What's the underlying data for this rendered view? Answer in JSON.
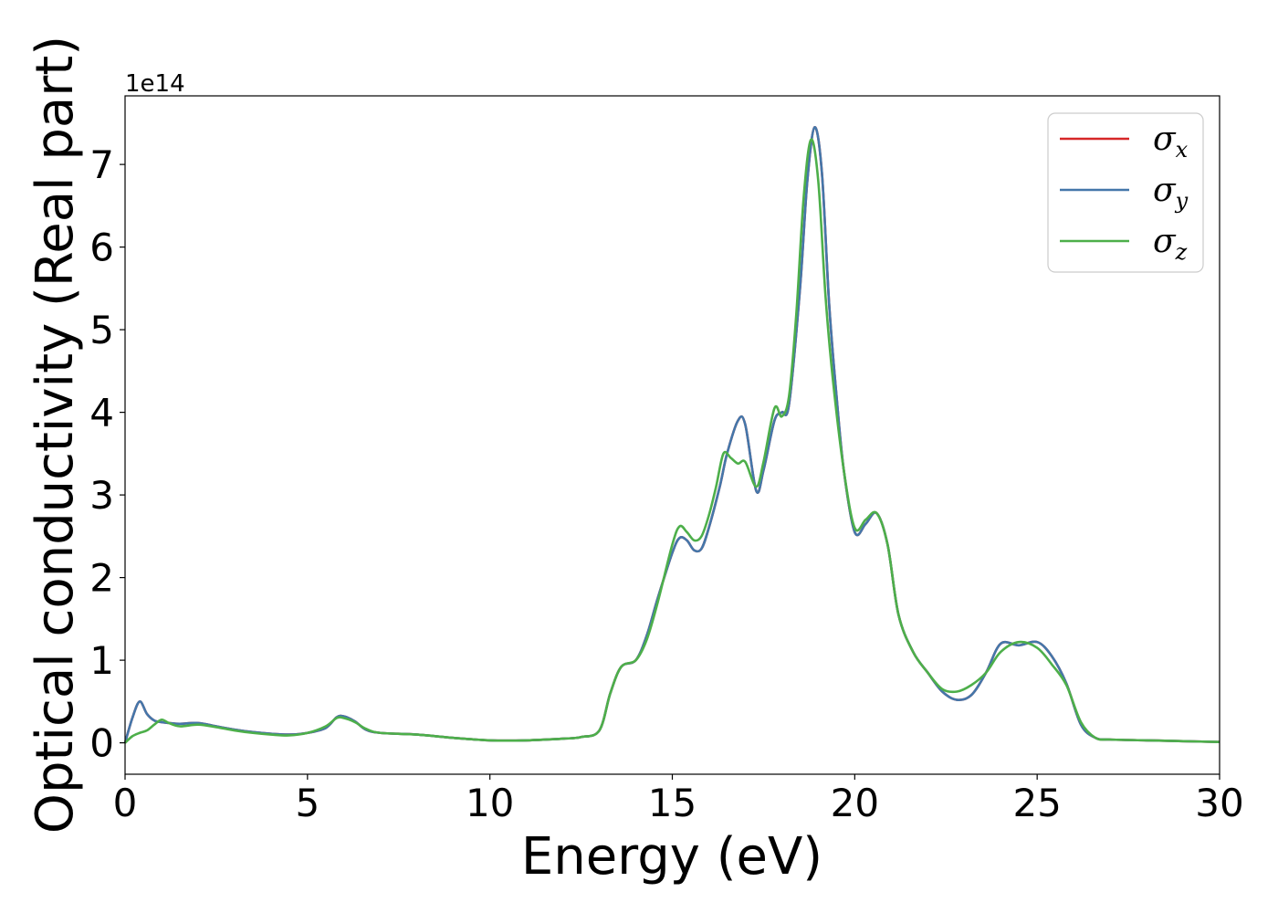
{
  "chart_data": {
    "type": "line",
    "xlabel": "Energy (eV)",
    "ylabel": "Optical conductivity (Real part)",
    "y_offset_label": "1e14",
    "xlim": [
      0,
      30
    ],
    "ylim": [
      -0.38,
      7.83
    ],
    "xticks": [
      0,
      5,
      10,
      15,
      20,
      25,
      30
    ],
    "yticks": [
      0,
      1,
      2,
      3,
      4,
      5,
      6,
      7
    ],
    "grid": false,
    "legend_position": "top-right",
    "series": [
      {
        "name": "σ",
        "subscript": "x",
        "color": "#d62728",
        "x": [
          0,
          0.2,
          0.4,
          0.6,
          0.8,
          1.0,
          1.2,
          1.5,
          2.0,
          2.5,
          3.0,
          3.5,
          4.0,
          4.5,
          5.0,
          5.5,
          5.8,
          6.0,
          6.3,
          6.6,
          7.0,
          8.0,
          9.0,
          10.0,
          11.0,
          12.0,
          12.5,
          13.0,
          13.3,
          13.6,
          14.0,
          14.3,
          14.6,
          15.0,
          15.2,
          15.4,
          15.6,
          15.8,
          16.0,
          16.3,
          16.5,
          16.8,
          17.0,
          17.3,
          17.5,
          17.8,
          18.0,
          18.2,
          18.5,
          18.7,
          18.9,
          19.1,
          19.3,
          19.5,
          19.7,
          20.0,
          20.3,
          20.6,
          20.9,
          21.2,
          21.6,
          22.0,
          22.4,
          22.8,
          23.2,
          23.6,
          24.0,
          24.5,
          25.0,
          25.4,
          25.8,
          26.2,
          26.6,
          27.0,
          28.0,
          29.0,
          30.0
        ],
        "values": [
          0.0,
          0.3,
          0.5,
          0.35,
          0.27,
          0.25,
          0.24,
          0.23,
          0.24,
          0.2,
          0.16,
          0.13,
          0.11,
          0.1,
          0.12,
          0.18,
          0.31,
          0.32,
          0.26,
          0.16,
          0.12,
          0.1,
          0.06,
          0.03,
          0.03,
          0.05,
          0.07,
          0.15,
          0.6,
          0.92,
          1.0,
          1.3,
          1.75,
          2.3,
          2.48,
          2.45,
          2.33,
          2.35,
          2.6,
          3.1,
          3.5,
          3.9,
          3.85,
          3.05,
          3.3,
          3.9,
          4.0,
          4.1,
          5.5,
          6.8,
          7.45,
          6.9,
          5.3,
          4.2,
          3.3,
          2.55,
          2.65,
          2.78,
          2.4,
          1.55,
          1.1,
          0.85,
          0.62,
          0.52,
          0.58,
          0.85,
          1.2,
          1.18,
          1.22,
          1.05,
          0.72,
          0.22,
          0.06,
          0.04,
          0.03,
          0.02,
          0.01
        ]
      },
      {
        "name": "σ",
        "subscript": "y",
        "color": "#4477aa",
        "x": [
          0,
          0.2,
          0.4,
          0.6,
          0.8,
          1.0,
          1.2,
          1.5,
          2.0,
          2.5,
          3.0,
          3.5,
          4.0,
          4.5,
          5.0,
          5.5,
          5.8,
          6.0,
          6.3,
          6.6,
          7.0,
          8.0,
          9.0,
          10.0,
          11.0,
          12.0,
          12.5,
          13.0,
          13.3,
          13.6,
          14.0,
          14.3,
          14.6,
          15.0,
          15.2,
          15.4,
          15.6,
          15.8,
          16.0,
          16.3,
          16.5,
          16.8,
          17.0,
          17.3,
          17.5,
          17.8,
          18.0,
          18.2,
          18.5,
          18.7,
          18.9,
          19.1,
          19.3,
          19.5,
          19.7,
          20.0,
          20.3,
          20.6,
          20.9,
          21.2,
          21.6,
          22.0,
          22.4,
          22.8,
          23.2,
          23.6,
          24.0,
          24.5,
          25.0,
          25.4,
          25.8,
          26.2,
          26.6,
          27.0,
          28.0,
          29.0,
          30.0
        ],
        "values": [
          0.0,
          0.3,
          0.5,
          0.35,
          0.27,
          0.25,
          0.24,
          0.23,
          0.24,
          0.2,
          0.16,
          0.13,
          0.11,
          0.1,
          0.12,
          0.18,
          0.31,
          0.32,
          0.26,
          0.16,
          0.12,
          0.1,
          0.06,
          0.03,
          0.03,
          0.05,
          0.07,
          0.15,
          0.6,
          0.92,
          1.0,
          1.3,
          1.75,
          2.3,
          2.48,
          2.45,
          2.33,
          2.35,
          2.6,
          3.1,
          3.5,
          3.9,
          3.85,
          3.05,
          3.3,
          3.9,
          4.0,
          4.1,
          5.5,
          6.8,
          7.45,
          6.9,
          5.3,
          4.2,
          3.3,
          2.55,
          2.65,
          2.78,
          2.4,
          1.55,
          1.1,
          0.85,
          0.62,
          0.52,
          0.58,
          0.85,
          1.2,
          1.18,
          1.22,
          1.05,
          0.72,
          0.22,
          0.06,
          0.04,
          0.03,
          0.02,
          0.01
        ]
      },
      {
        "name": "σ",
        "subscript": "z",
        "color": "#4daf4a",
        "x": [
          0,
          0.2,
          0.4,
          0.6,
          0.8,
          1.0,
          1.2,
          1.5,
          2.0,
          2.5,
          3.0,
          3.5,
          4.0,
          4.5,
          5.0,
          5.5,
          5.8,
          6.0,
          6.3,
          6.6,
          7.0,
          8.0,
          9.0,
          10.0,
          11.0,
          12.0,
          12.5,
          13.0,
          13.3,
          13.6,
          14.0,
          14.3,
          14.6,
          15.0,
          15.2,
          15.4,
          15.6,
          15.8,
          16.0,
          16.2,
          16.4,
          16.6,
          16.8,
          17.0,
          17.3,
          17.5,
          17.8,
          18.0,
          18.2,
          18.4,
          18.6,
          18.8,
          19.0,
          19.2,
          19.4,
          19.7,
          20.0,
          20.3,
          20.6,
          20.9,
          21.2,
          21.6,
          22.0,
          22.4,
          22.8,
          23.2,
          23.6,
          24.0,
          24.5,
          25.0,
          25.4,
          25.8,
          26.2,
          26.6,
          27.0,
          28.0,
          29.0,
          30.0
        ],
        "values": [
          0.0,
          0.08,
          0.12,
          0.15,
          0.22,
          0.28,
          0.24,
          0.2,
          0.22,
          0.19,
          0.15,
          0.12,
          0.1,
          0.09,
          0.12,
          0.2,
          0.3,
          0.3,
          0.25,
          0.17,
          0.12,
          0.1,
          0.06,
          0.03,
          0.03,
          0.05,
          0.07,
          0.15,
          0.6,
          0.92,
          1.0,
          1.25,
          1.7,
          2.4,
          2.62,
          2.55,
          2.45,
          2.5,
          2.75,
          3.1,
          3.5,
          3.45,
          3.38,
          3.4,
          3.1,
          3.4,
          4.05,
          3.95,
          4.2,
          5.2,
          6.6,
          7.3,
          6.8,
          5.4,
          4.4,
          3.3,
          2.6,
          2.7,
          2.78,
          2.4,
          1.55,
          1.1,
          0.85,
          0.65,
          0.62,
          0.7,
          0.85,
          1.1,
          1.22,
          1.15,
          0.95,
          0.7,
          0.25,
          0.06,
          0.04,
          0.03,
          0.02,
          0.01
        ]
      }
    ]
  }
}
